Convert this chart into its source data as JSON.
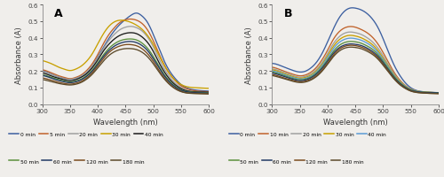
{
  "title_A": "A",
  "title_B": "B",
  "xlabel": "Wavelength (nm)",
  "ylabel": "Absorbance (A)",
  "xlim": [
    300,
    600
  ],
  "ylim": [
    0,
    0.6
  ],
  "yticks": [
    0,
    0.1,
    0.2,
    0.3,
    0.4,
    0.5,
    0.6
  ],
  "xticks": [
    300,
    350,
    400,
    450,
    500,
    550,
    600
  ],
  "panel_A": {
    "legend_labels": [
      "0 min",
      "5 min",
      "20 min",
      "30 min",
      "40 min",
      "50 min",
      "60 min",
      "120 min",
      "180 min"
    ],
    "colors": [
      "#3C5FA0",
      "#C0622A",
      "#A0A0A0",
      "#C8A000",
      "#1A1A1A",
      "#5A8F3C",
      "#203864",
      "#7B4C1E",
      "#5C4A2A"
    ],
    "curves": [
      [
        0.2,
        0.19,
        0.175,
        0.163,
        0.155,
        0.15,
        0.155,
        0.168,
        0.19,
        0.228,
        0.282,
        0.34,
        0.395,
        0.442,
        0.48,
        0.51,
        0.535,
        0.548,
        0.53,
        0.49,
        0.42,
        0.338,
        0.258,
        0.196,
        0.152,
        0.118,
        0.098,
        0.088,
        0.083,
        0.08,
        0.078
      ],
      [
        0.207,
        0.197,
        0.183,
        0.17,
        0.16,
        0.153,
        0.16,
        0.175,
        0.202,
        0.242,
        0.298,
        0.362,
        0.418,
        0.46,
        0.492,
        0.508,
        0.512,
        0.505,
        0.485,
        0.445,
        0.382,
        0.305,
        0.235,
        0.18,
        0.14,
        0.11,
        0.093,
        0.083,
        0.078,
        0.076,
        0.074
      ],
      [
        0.197,
        0.187,
        0.174,
        0.163,
        0.153,
        0.149,
        0.155,
        0.168,
        0.192,
        0.228,
        0.277,
        0.333,
        0.382,
        0.42,
        0.448,
        0.463,
        0.468,
        0.46,
        0.44,
        0.402,
        0.345,
        0.275,
        0.212,
        0.162,
        0.125,
        0.1,
        0.084,
        0.076,
        0.072,
        0.07,
        0.069
      ],
      [
        0.262,
        0.252,
        0.238,
        0.222,
        0.21,
        0.202,
        0.21,
        0.228,
        0.258,
        0.302,
        0.362,
        0.422,
        0.468,
        0.495,
        0.505,
        0.502,
        0.492,
        0.475,
        0.45,
        0.412,
        0.36,
        0.295,
        0.232,
        0.18,
        0.142,
        0.118,
        0.105,
        0.1,
        0.098,
        0.096,
        0.095
      ],
      [
        0.188,
        0.178,
        0.165,
        0.155,
        0.146,
        0.141,
        0.147,
        0.161,
        0.183,
        0.218,
        0.265,
        0.318,
        0.36,
        0.392,
        0.414,
        0.426,
        0.43,
        0.424,
        0.404,
        0.37,
        0.318,
        0.252,
        0.194,
        0.148,
        0.115,
        0.093,
        0.08,
        0.075,
        0.073,
        0.072,
        0.071
      ],
      [
        0.177,
        0.168,
        0.157,
        0.147,
        0.138,
        0.133,
        0.138,
        0.15,
        0.172,
        0.204,
        0.248,
        0.295,
        0.335,
        0.363,
        0.381,
        0.39,
        0.392,
        0.386,
        0.367,
        0.335,
        0.287,
        0.23,
        0.177,
        0.136,
        0.106,
        0.086,
        0.076,
        0.072,
        0.07,
        0.069,
        0.068
      ],
      [
        0.172,
        0.164,
        0.152,
        0.142,
        0.134,
        0.129,
        0.134,
        0.146,
        0.167,
        0.198,
        0.24,
        0.285,
        0.322,
        0.349,
        0.366,
        0.375,
        0.377,
        0.37,
        0.352,
        0.321,
        0.274,
        0.22,
        0.17,
        0.13,
        0.102,
        0.083,
        0.074,
        0.07,
        0.068,
        0.067,
        0.066
      ],
      [
        0.158,
        0.15,
        0.14,
        0.131,
        0.124,
        0.12,
        0.125,
        0.136,
        0.157,
        0.188,
        0.23,
        0.273,
        0.31,
        0.335,
        0.35,
        0.358,
        0.358,
        0.351,
        0.333,
        0.302,
        0.258,
        0.205,
        0.158,
        0.12,
        0.094,
        0.077,
        0.068,
        0.065,
        0.064,
        0.063,
        0.062
      ],
      [
        0.148,
        0.141,
        0.132,
        0.124,
        0.118,
        0.115,
        0.119,
        0.13,
        0.15,
        0.179,
        0.218,
        0.258,
        0.292,
        0.315,
        0.328,
        0.334,
        0.334,
        0.328,
        0.312,
        0.284,
        0.243,
        0.195,
        0.151,
        0.116,
        0.091,
        0.075,
        0.067,
        0.064,
        0.063,
        0.062,
        0.061
      ]
    ]
  },
  "panel_B": {
    "legend_labels": [
      "0 min",
      "10 min",
      "20 min",
      "30 min",
      "40 min",
      "50 min",
      "60 min",
      "120 min",
      "180 min"
    ],
    "colors": [
      "#3C5FA0",
      "#C0622A",
      "#A0A0A0",
      "#C8A000",
      "#5B9BD5",
      "#5A8F3C",
      "#203864",
      "#7B4C1E",
      "#5C4A2A"
    ],
    "curves": [
      [
        0.245,
        0.238,
        0.225,
        0.212,
        0.2,
        0.193,
        0.198,
        0.218,
        0.252,
        0.305,
        0.375,
        0.45,
        0.515,
        0.558,
        0.578,
        0.578,
        0.568,
        0.548,
        0.515,
        0.465,
        0.393,
        0.31,
        0.233,
        0.173,
        0.128,
        0.098,
        0.082,
        0.075,
        0.072,
        0.07,
        0.068
      ],
      [
        0.222,
        0.213,
        0.2,
        0.188,
        0.177,
        0.17,
        0.175,
        0.192,
        0.222,
        0.267,
        0.325,
        0.388,
        0.433,
        0.458,
        0.467,
        0.463,
        0.45,
        0.432,
        0.405,
        0.365,
        0.31,
        0.248,
        0.19,
        0.145,
        0.112,
        0.09,
        0.078,
        0.073,
        0.07,
        0.068,
        0.067
      ],
      [
        0.212,
        0.204,
        0.192,
        0.18,
        0.169,
        0.162,
        0.167,
        0.182,
        0.209,
        0.25,
        0.305,
        0.362,
        0.403,
        0.426,
        0.434,
        0.43,
        0.42,
        0.402,
        0.377,
        0.34,
        0.29,
        0.233,
        0.18,
        0.14,
        0.11,
        0.09,
        0.079,
        0.074,
        0.072,
        0.07,
        0.069
      ],
      [
        0.207,
        0.198,
        0.186,
        0.174,
        0.163,
        0.156,
        0.161,
        0.175,
        0.201,
        0.24,
        0.292,
        0.346,
        0.385,
        0.406,
        0.414,
        0.41,
        0.4,
        0.383,
        0.36,
        0.325,
        0.277,
        0.224,
        0.174,
        0.136,
        0.107,
        0.088,
        0.078,
        0.073,
        0.071,
        0.069,
        0.068
      ],
      [
        0.2,
        0.192,
        0.18,
        0.168,
        0.158,
        0.151,
        0.155,
        0.169,
        0.194,
        0.232,
        0.281,
        0.332,
        0.369,
        0.389,
        0.397,
        0.394,
        0.385,
        0.369,
        0.347,
        0.314,
        0.268,
        0.218,
        0.17,
        0.132,
        0.105,
        0.086,
        0.077,
        0.072,
        0.07,
        0.069,
        0.068
      ],
      [
        0.194,
        0.185,
        0.174,
        0.162,
        0.152,
        0.146,
        0.15,
        0.163,
        0.187,
        0.222,
        0.268,
        0.316,
        0.351,
        0.37,
        0.377,
        0.375,
        0.367,
        0.352,
        0.332,
        0.301,
        0.258,
        0.21,
        0.165,
        0.129,
        0.103,
        0.085,
        0.076,
        0.072,
        0.07,
        0.069,
        0.068
      ],
      [
        0.187,
        0.179,
        0.168,
        0.157,
        0.147,
        0.141,
        0.145,
        0.158,
        0.181,
        0.215,
        0.259,
        0.304,
        0.337,
        0.355,
        0.362,
        0.36,
        0.353,
        0.339,
        0.319,
        0.29,
        0.249,
        0.203,
        0.159,
        0.125,
        0.1,
        0.083,
        0.075,
        0.071,
        0.069,
        0.068,
        0.067
      ],
      [
        0.178,
        0.17,
        0.159,
        0.149,
        0.14,
        0.134,
        0.138,
        0.15,
        0.172,
        0.205,
        0.248,
        0.294,
        0.328,
        0.347,
        0.354,
        0.352,
        0.344,
        0.33,
        0.31,
        0.281,
        0.241,
        0.196,
        0.153,
        0.12,
        0.096,
        0.079,
        0.071,
        0.067,
        0.065,
        0.064,
        0.063
      ],
      [
        0.172,
        0.164,
        0.154,
        0.144,
        0.135,
        0.13,
        0.133,
        0.145,
        0.166,
        0.198,
        0.24,
        0.284,
        0.317,
        0.336,
        0.343,
        0.341,
        0.334,
        0.32,
        0.301,
        0.273,
        0.234,
        0.191,
        0.15,
        0.117,
        0.094,
        0.078,
        0.07,
        0.067,
        0.065,
        0.064,
        0.063
      ]
    ]
  },
  "legend_A_row1": [
    "0 min",
    "5 min",
    "20 min",
    "30 min",
    "40 min"
  ],
  "legend_A_row1_colors": [
    "#3C5FA0",
    "#C0622A",
    "#A0A0A0",
    "#C8A000",
    "#1A1A1A"
  ],
  "legend_A_row2": [
    "50 min",
    "60 min",
    "120 min",
    "180 min"
  ],
  "legend_A_row2_colors": [
    "#5A8F3C",
    "#203864",
    "#7B4C1E",
    "#5C4A2A"
  ],
  "legend_B_row1": [
    "0 min",
    "10 min",
    "20 min",
    "30 min",
    "40 min"
  ],
  "legend_B_row1_colors": [
    "#3C5FA0",
    "#C0622A",
    "#A0A0A0",
    "#C8A000",
    "#5B9BD5"
  ],
  "legend_B_row2": [
    "50 min",
    "60 min",
    "120 min",
    "180 min"
  ],
  "legend_B_row2_colors": [
    "#5A8F3C",
    "#203864",
    "#7B4C1E",
    "#5C4A2A"
  ]
}
